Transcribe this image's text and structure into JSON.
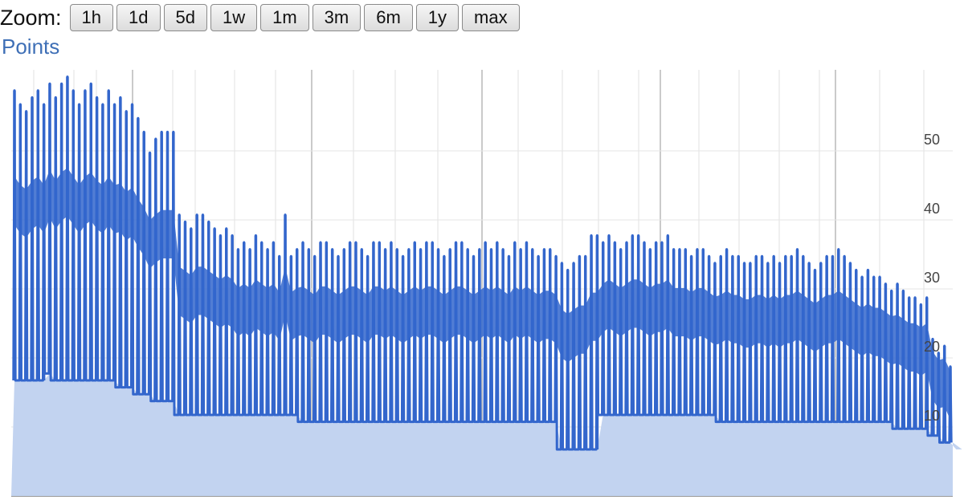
{
  "zoom": {
    "label": "Zoom:",
    "buttons": [
      "1h",
      "1d",
      "5d",
      "1w",
      "1m",
      "3m",
      "6m",
      "1y",
      "max"
    ]
  },
  "chart_data": {
    "type": "line",
    "title": "",
    "legend": [
      "Points"
    ],
    "xlabel": "",
    "ylabel": "",
    "ylim": [
      0,
      60
    ],
    "y_ticks": [
      10,
      20,
      30,
      40,
      50
    ],
    "y_tick_labels": [
      "10",
      "20",
      "30",
      "40",
      "50"
    ],
    "y_axis_position": "right",
    "grid": true,
    "colors": {
      "line": "#3366cc",
      "fill": "#c2d3f0",
      "title": "#3e6fb6"
    },
    "series": [
      {
        "name": "Points",
        "peaks": [
          57,
          55,
          54,
          56,
          57,
          55,
          58,
          56,
          58,
          59,
          57,
          55,
          57,
          58,
          56,
          55,
          57,
          55,
          56,
          54,
          55,
          53,
          51,
          48,
          50,
          51,
          51,
          51,
          39,
          38,
          37,
          39,
          39,
          38,
          37,
          36,
          37,
          36,
          34,
          35,
          34,
          36,
          35,
          34,
          35,
          33,
          39,
          33,
          34,
          35,
          34,
          33,
          35,
          35,
          34,
          33,
          34,
          35,
          35,
          34,
          33,
          35,
          35,
          34,
          35,
          34,
          33,
          34,
          35,
          34,
          35,
          35,
          34,
          33,
          34,
          35,
          35,
          34,
          33,
          34,
          35,
          34,
          35,
          34,
          33,
          35,
          34,
          35,
          34,
          33,
          34,
          34,
          33,
          32,
          31,
          32,
          33,
          33,
          36,
          36,
          35,
          36,
          35,
          34,
          35,
          36,
          36,
          35,
          34,
          35,
          35,
          36,
          34,
          34,
          34,
          33,
          34,
          34,
          33,
          32,
          33,
          34,
          33,
          33,
          32,
          32,
          33,
          33,
          32,
          33,
          32,
          33,
          33,
          34,
          33,
          32,
          31,
          32,
          33,
          33,
          34,
          33,
          32,
          31,
          30,
          31,
          30,
          30,
          29,
          28,
          29,
          28,
          27,
          27,
          26,
          27,
          21,
          19,
          20,
          17
        ],
        "troughs": [
          15,
          15,
          15,
          15,
          15,
          15,
          16,
          15,
          15,
          15,
          15,
          15,
          15,
          15,
          15,
          15,
          15,
          15,
          14,
          14,
          14,
          13,
          13,
          13,
          12,
          12,
          12,
          12,
          10,
          10,
          10,
          10,
          10,
          10,
          10,
          10,
          10,
          10,
          10,
          10,
          10,
          10,
          10,
          10,
          10,
          10,
          10,
          10,
          10,
          9,
          9,
          9,
          9,
          9,
          9,
          9,
          9,
          9,
          9,
          9,
          9,
          9,
          9,
          9,
          9,
          9,
          9,
          9,
          9,
          9,
          9,
          9,
          9,
          9,
          9,
          9,
          9,
          9,
          9,
          9,
          9,
          9,
          9,
          9,
          9,
          9,
          9,
          9,
          9,
          9,
          9,
          9,
          9,
          5,
          5,
          5,
          5,
          5,
          5,
          5,
          10,
          10,
          10,
          10,
          10,
          10,
          10,
          10,
          10,
          10,
          10,
          10,
          10,
          10,
          10,
          10,
          10,
          10,
          10,
          10,
          9,
          9,
          9,
          9,
          9,
          9,
          9,
          9,
          9,
          9,
          9,
          9,
          9,
          9,
          9,
          9,
          9,
          9,
          9,
          9,
          9,
          9,
          9,
          9,
          9,
          9,
          9,
          9,
          9,
          9,
          8,
          8,
          8,
          8,
          8,
          8,
          7,
          7,
          6,
          6,
          5,
          5
        ]
      }
    ]
  }
}
